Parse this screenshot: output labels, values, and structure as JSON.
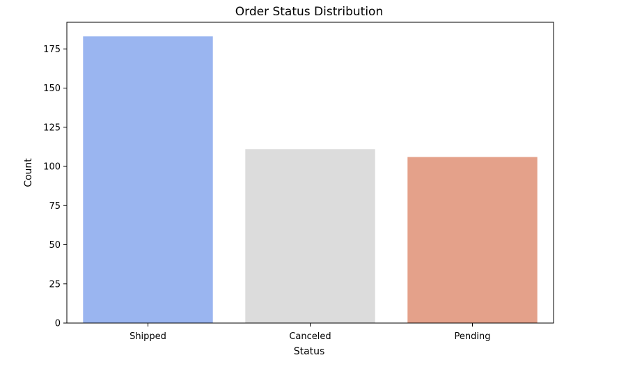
{
  "chart_data": {
    "type": "bar",
    "title": "Order Status Distribution",
    "xlabel": "Status",
    "ylabel": "Count",
    "categories": [
      "Shipped",
      "Canceled",
      "Pending"
    ],
    "values": [
      183,
      111,
      106
    ],
    "colors": [
      "#9ab5f0",
      "#dcdcdc",
      "#e4a18a"
    ],
    "ylim": [
      0,
      192
    ],
    "yticks": [
      0,
      25,
      50,
      75,
      100,
      125,
      150,
      175
    ],
    "grid": false,
    "legend": "none"
  }
}
